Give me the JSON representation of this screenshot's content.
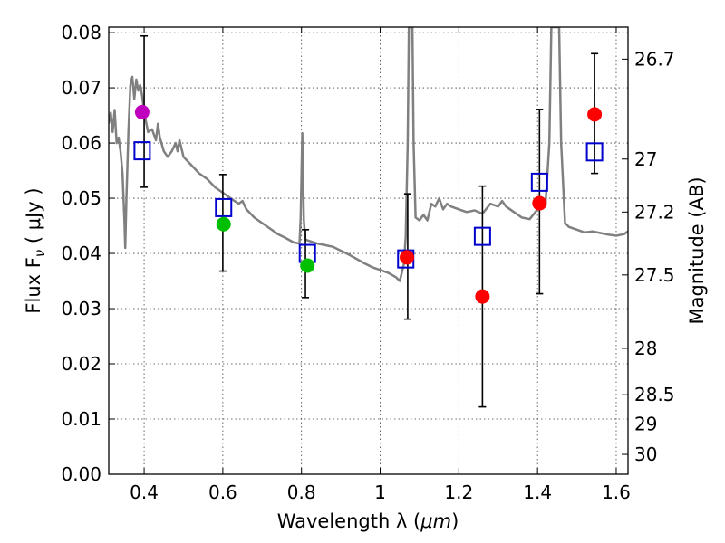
{
  "chart_data": {
    "type": "scatter",
    "xlabel_prefix": "Wavelength  λ (",
    "xlabel_unit": "μm",
    "xlabel_suffix": ")",
    "ylabel_prefix": "Flux  F",
    "ylabel_subscript": "ν",
    "ylabel_suffix": " ( μJy )",
    "y2label": "Magnitude (AB)",
    "xlim": [
      0.31,
      1.63
    ],
    "ylim": [
      0.0,
      0.081
    ],
    "grid": true,
    "x_ticks": [
      0.4,
      0.6,
      0.8,
      1.0,
      1.2,
      1.4,
      1.6
    ],
    "x_tick_labels": [
      "0.4",
      "0.6",
      "0.8",
      "1",
      "1.2",
      "1.4",
      "1.6"
    ],
    "y_ticks": [
      0.0,
      0.01,
      0.02,
      0.03,
      0.04,
      0.05,
      0.06,
      0.07,
      0.08
    ],
    "y_tick_labels": [
      "0.00",
      "0.01",
      "0.02",
      "0.03",
      "0.04",
      "0.05",
      "0.06",
      "0.07",
      "0.08"
    ],
    "mag_ticks": [
      {
        "label": "26.7",
        "flux": 0.0752
      },
      {
        "label": "27",
        "flux": 0.0571
      },
      {
        "label": "27.2",
        "flux": 0.0475
      },
      {
        "label": "27.5",
        "flux": 0.0361
      },
      {
        "label": "28",
        "flux": 0.0228
      },
      {
        "label": "28.5",
        "flux": 0.0144
      },
      {
        "label": "29",
        "flux": 0.0091
      },
      {
        "label": "30",
        "flux": 0.0036
      }
    ],
    "model_spectrum": {
      "name": "model SED",
      "color": "#808080",
      "points": [
        [
          0.31,
          0.0635
        ],
        [
          0.315,
          0.0655
        ],
        [
          0.32,
          0.062
        ],
        [
          0.325,
          0.066
        ],
        [
          0.33,
          0.06
        ],
        [
          0.335,
          0.061
        ],
        [
          0.34,
          0.0585
        ],
        [
          0.345,
          0.0545
        ],
        [
          0.35,
          0.0455
        ],
        [
          0.352,
          0.041
        ],
        [
          0.355,
          0.05
        ],
        [
          0.36,
          0.062
        ],
        [
          0.365,
          0.0705
        ],
        [
          0.37,
          0.072
        ],
        [
          0.375,
          0.068
        ],
        [
          0.38,
          0.0715
        ],
        [
          0.385,
          0.0695
        ],
        [
          0.39,
          0.0705
        ],
        [
          0.395,
          0.0685
        ],
        [
          0.4,
          0.0655
        ],
        [
          0.41,
          0.062
        ],
        [
          0.42,
          0.0625
        ],
        [
          0.43,
          0.0605
        ],
        [
          0.435,
          0.0635
        ],
        [
          0.44,
          0.061
        ],
        [
          0.45,
          0.0585
        ],
        [
          0.46,
          0.0575
        ],
        [
          0.47,
          0.0585
        ],
        [
          0.48,
          0.06
        ],
        [
          0.485,
          0.0585
        ],
        [
          0.49,
          0.0605
        ],
        [
          0.5,
          0.0575
        ],
        [
          0.52,
          0.056
        ],
        [
          0.54,
          0.0545
        ],
        [
          0.56,
          0.0535
        ],
        [
          0.58,
          0.052
        ],
        [
          0.6,
          0.051
        ],
        [
          0.62,
          0.05
        ],
        [
          0.64,
          0.049
        ],
        [
          0.65,
          0.0495
        ],
        [
          0.66,
          0.048
        ],
        [
          0.68,
          0.0465
        ],
        [
          0.7,
          0.0455
        ],
        [
          0.72,
          0.0445
        ],
        [
          0.74,
          0.0435
        ],
        [
          0.76,
          0.0428
        ],
        [
          0.78,
          0.042
        ],
        [
          0.795,
          0.0418
        ],
        [
          0.798,
          0.0465
        ],
        [
          0.802,
          0.0618
        ],
        [
          0.806,
          0.046
        ],
        [
          0.81,
          0.0425
        ],
        [
          0.84,
          0.0418
        ],
        [
          0.86,
          0.0415
        ],
        [
          0.88,
          0.0412
        ],
        [
          0.9,
          0.0405
        ],
        [
          0.92,
          0.0398
        ],
        [
          0.94,
          0.039
        ],
        [
          0.96,
          0.0382
        ],
        [
          0.98,
          0.0375
        ],
        [
          1.0,
          0.037
        ],
        [
          1.02,
          0.0365
        ],
        [
          1.04,
          0.0357
        ],
        [
          1.05,
          0.035
        ],
        [
          1.06,
          0.038
        ],
        [
          1.065,
          0.043
        ],
        [
          1.07,
          0.06
        ],
        [
          1.073,
          0.081
        ],
        [
          1.082,
          0.081
        ],
        [
          1.085,
          0.06
        ],
        [
          1.09,
          0.0465
        ],
        [
          1.1,
          0.046
        ],
        [
          1.11,
          0.047
        ],
        [
          1.12,
          0.046
        ],
        [
          1.13,
          0.049
        ],
        [
          1.14,
          0.0485
        ],
        [
          1.15,
          0.05
        ],
        [
          1.16,
          0.048
        ],
        [
          1.17,
          0.049
        ],
        [
          1.18,
          0.0485
        ],
        [
          1.2,
          0.048
        ],
        [
          1.22,
          0.0475
        ],
        [
          1.24,
          0.0478
        ],
        [
          1.26,
          0.0472
        ],
        [
          1.28,
          0.049
        ],
        [
          1.3,
          0.0485
        ],
        [
          1.31,
          0.0495
        ],
        [
          1.32,
          0.0485
        ],
        [
          1.34,
          0.0475
        ],
        [
          1.36,
          0.0465
        ],
        [
          1.38,
          0.0462
        ],
        [
          1.4,
          0.048
        ],
        [
          1.42,
          0.0485
        ],
        [
          1.43,
          0.06
        ],
        [
          1.435,
          0.081
        ],
        [
          1.455,
          0.081
        ],
        [
          1.46,
          0.06
        ],
        [
          1.47,
          0.0455
        ],
        [
          1.48,
          0.0448
        ],
        [
          1.5,
          0.0443
        ],
        [
          1.52,
          0.0438
        ],
        [
          1.54,
          0.044
        ],
        [
          1.56,
          0.0437
        ],
        [
          1.58,
          0.0434
        ],
        [
          1.6,
          0.0432
        ],
        [
          1.62,
          0.0435
        ],
        [
          1.63,
          0.044
        ]
      ]
    },
    "errorbars": [
      {
        "x": 0.4,
        "low": 0.052,
        "high": 0.0794
      },
      {
        "x": 0.6,
        "low": 0.0368,
        "high": 0.0543
      },
      {
        "x": 0.81,
        "low": 0.032,
        "high": 0.0443
      },
      {
        "x": 1.07,
        "low": 0.0281,
        "high": 0.0508
      },
      {
        "x": 1.26,
        "low": 0.0122,
        "high": 0.0522
      },
      {
        "x": 1.405,
        "low": 0.0327,
        "high": 0.0661
      },
      {
        "x": 1.545,
        "low": 0.0545,
        "high": 0.0762
      }
    ],
    "model_points": {
      "name": "model photometry",
      "color": "#0000cc",
      "points": [
        {
          "x": 0.395,
          "y": 0.0586
        },
        {
          "x": 0.602,
          "y": 0.0483
        },
        {
          "x": 0.815,
          "y": 0.04
        },
        {
          "x": 1.065,
          "y": 0.039
        },
        {
          "x": 1.26,
          "y": 0.0431
        },
        {
          "x": 1.405,
          "y": 0.0529
        },
        {
          "x": 1.545,
          "y": 0.0584
        }
      ]
    },
    "observed_points": [
      {
        "x": 0.395,
        "y": 0.0656,
        "color": "#bf00bf"
      },
      {
        "x": 0.602,
        "y": 0.0453,
        "color": "#00bf00"
      },
      {
        "x": 0.815,
        "y": 0.0378,
        "color": "#00bf00"
      },
      {
        "x": 1.068,
        "y": 0.0393,
        "color": "#ff0000"
      },
      {
        "x": 1.26,
        "y": 0.0322,
        "color": "#ff0000"
      },
      {
        "x": 1.405,
        "y": 0.0491,
        "color": "#ff0000"
      },
      {
        "x": 1.545,
        "y": 0.0652,
        "color": "#ff0000"
      }
    ]
  }
}
